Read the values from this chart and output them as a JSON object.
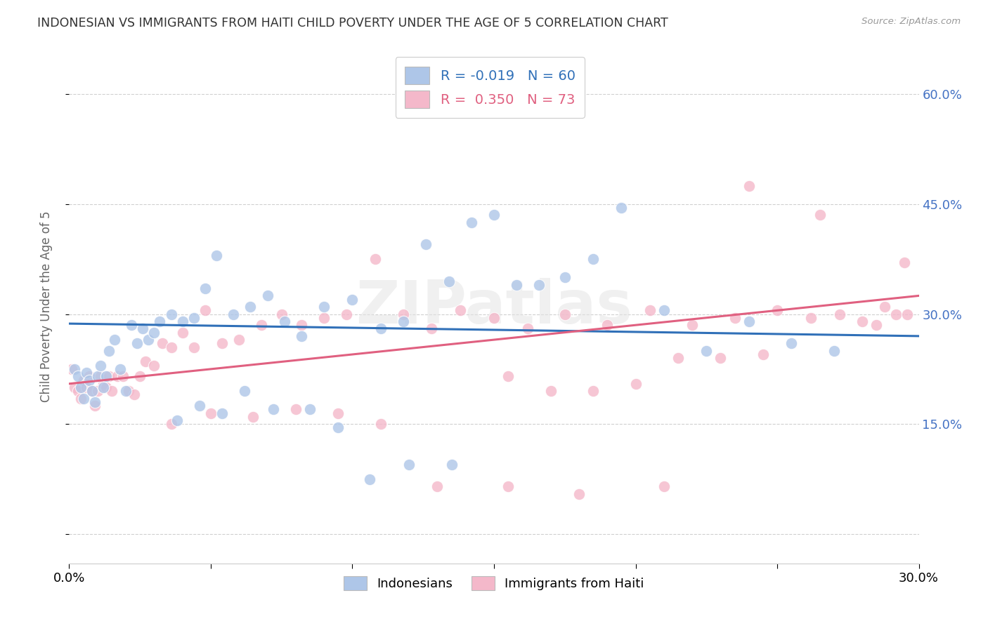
{
  "title": "INDONESIAN VS IMMIGRANTS FROM HAITI CHILD POVERTY UNDER THE AGE OF 5 CORRELATION CHART",
  "source": "Source: ZipAtlas.com",
  "ylabel": "Child Poverty Under the Age of 5",
  "xmin": 0.0,
  "xmax": 0.3,
  "ymin": -0.04,
  "ymax": 0.66,
  "ytick_vals": [
    0.0,
    0.15,
    0.3,
    0.45,
    0.6
  ],
  "ytick_labels": [
    "",
    "15.0%",
    "30.0%",
    "45.0%",
    "60.0%"
  ],
  "xtick_vals": [
    0.0,
    0.05,
    0.1,
    0.15,
    0.2,
    0.25,
    0.3
  ],
  "xtick_labels": [
    "0.0%",
    "",
    "",
    "",
    "",
    "",
    "30.0%"
  ],
  "indonesian_N": 60,
  "indonesian_R": -0.019,
  "haiti_N": 73,
  "haiti_R": 0.35,
  "blue_line_x": [
    0.0,
    0.3
  ],
  "blue_line_y": [
    0.287,
    0.27
  ],
  "pink_line_x": [
    0.0,
    0.3
  ],
  "pink_line_y": [
    0.205,
    0.325
  ],
  "watermark": "ZIPatlas",
  "blue_dot_color": "#aec6e8",
  "pink_dot_color": "#f4b8ca",
  "blue_line_color": "#3070b8",
  "pink_line_color": "#e06080",
  "bg_color": "#ffffff",
  "grid_color": "#d0d0d0",
  "title_color": "#333333",
  "right_axis_color": "#4472c4",
  "legend1_label0": "R = -0.019   N = 60",
  "legend1_label1": "R =  0.350   N = 73",
  "legend2_label0": "Indonesians",
  "legend2_label1": "Immigrants from Haiti",
  "blue_x": [
    0.002,
    0.003,
    0.004,
    0.005,
    0.006,
    0.007,
    0.008,
    0.009,
    0.01,
    0.011,
    0.012,
    0.013,
    0.014,
    0.016,
    0.018,
    0.02,
    0.022,
    0.024,
    0.026,
    0.028,
    0.03,
    0.032,
    0.036,
    0.04,
    0.044,
    0.048,
    0.052,
    0.058,
    0.064,
    0.07,
    0.076,
    0.082,
    0.09,
    0.1,
    0.11,
    0.118,
    0.126,
    0.134,
    0.142,
    0.15,
    0.158,
    0.166,
    0.175,
    0.185,
    0.195,
    0.21,
    0.225,
    0.24,
    0.255,
    0.27,
    0.038,
    0.046,
    0.054,
    0.062,
    0.072,
    0.085,
    0.095,
    0.106,
    0.12,
    0.135
  ],
  "blue_y": [
    0.225,
    0.215,
    0.2,
    0.185,
    0.22,
    0.21,
    0.195,
    0.18,
    0.215,
    0.23,
    0.2,
    0.215,
    0.25,
    0.265,
    0.225,
    0.195,
    0.285,
    0.26,
    0.28,
    0.265,
    0.275,
    0.29,
    0.3,
    0.29,
    0.295,
    0.335,
    0.38,
    0.3,
    0.31,
    0.325,
    0.29,
    0.27,
    0.31,
    0.32,
    0.28,
    0.29,
    0.395,
    0.345,
    0.425,
    0.435,
    0.34,
    0.34,
    0.35,
    0.375,
    0.445,
    0.305,
    0.25,
    0.29,
    0.26,
    0.25,
    0.155,
    0.175,
    0.165,
    0.195,
    0.17,
    0.17,
    0.145,
    0.075,
    0.095,
    0.095
  ],
  "pink_x": [
    0.001,
    0.002,
    0.003,
    0.004,
    0.005,
    0.006,
    0.007,
    0.008,
    0.009,
    0.01,
    0.011,
    0.012,
    0.013,
    0.014,
    0.015,
    0.017,
    0.019,
    0.021,
    0.023,
    0.025,
    0.027,
    0.03,
    0.033,
    0.036,
    0.04,
    0.044,
    0.048,
    0.054,
    0.06,
    0.068,
    0.075,
    0.082,
    0.09,
    0.098,
    0.108,
    0.118,
    0.128,
    0.138,
    0.15,
    0.162,
    0.175,
    0.19,
    0.205,
    0.22,
    0.235,
    0.25,
    0.262,
    0.272,
    0.28,
    0.288,
    0.292,
    0.296,
    0.036,
    0.05,
    0.065,
    0.08,
    0.095,
    0.11,
    0.13,
    0.155,
    0.18,
    0.21,
    0.24,
    0.265,
    0.285,
    0.295,
    0.155,
    0.17,
    0.185,
    0.2,
    0.215,
    0.23,
    0.245
  ],
  "pink_y": [
    0.225,
    0.2,
    0.195,
    0.185,
    0.21,
    0.2,
    0.215,
    0.195,
    0.175,
    0.195,
    0.215,
    0.205,
    0.2,
    0.215,
    0.195,
    0.215,
    0.215,
    0.195,
    0.19,
    0.215,
    0.235,
    0.23,
    0.26,
    0.255,
    0.275,
    0.255,
    0.305,
    0.26,
    0.265,
    0.285,
    0.3,
    0.285,
    0.295,
    0.3,
    0.375,
    0.3,
    0.28,
    0.305,
    0.295,
    0.28,
    0.3,
    0.285,
    0.305,
    0.285,
    0.295,
    0.305,
    0.295,
    0.3,
    0.29,
    0.31,
    0.3,
    0.3,
    0.15,
    0.165,
    0.16,
    0.17,
    0.165,
    0.15,
    0.065,
    0.065,
    0.055,
    0.065,
    0.475,
    0.435,
    0.285,
    0.37,
    0.215,
    0.195,
    0.195,
    0.205,
    0.24,
    0.24,
    0.245
  ]
}
